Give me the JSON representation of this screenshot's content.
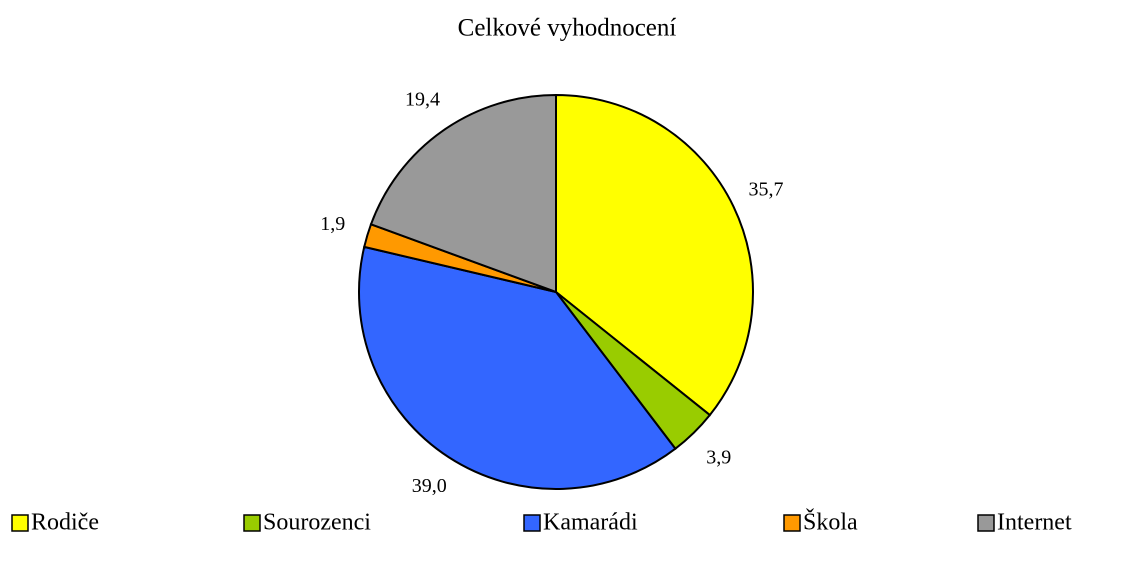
{
  "chart_data": {
    "type": "pie",
    "title": "Celkové vyhodnocení",
    "categories": [
      "Rodiče",
      "Sourozenci",
      "Kamarádi",
      "Škola",
      "Internet"
    ],
    "values": [
      35.7,
      3.9,
      39.0,
      1.9,
      19.4
    ],
    "value_labels": [
      "35,7",
      "3,9",
      "39,0",
      "1,9",
      "19,4"
    ],
    "colors": [
      "#ffff00",
      "#99cc00",
      "#3366ff",
      "#ff9900",
      "#999999"
    ],
    "legend": "bottom"
  }
}
